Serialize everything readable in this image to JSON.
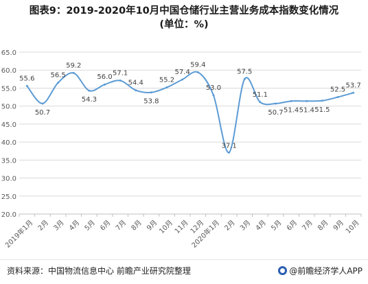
{
  "title": {
    "line1": "图表9：2019-2020年10月中国仓储行业主营业务成本指数变化情况",
    "line2": "(单位：%)"
  },
  "footer": {
    "source": "资料来源：中国物流信息中心 前瞻产业研究院整理",
    "brand": "@前瞻经济学人APP"
  },
  "colors": {
    "line": "#5b9bd5",
    "grid": "#d9d9d9",
    "axis": "#bfbfbf",
    "text": "#595959"
  },
  "chart_data": {
    "type": "line",
    "categories": [
      "2019年1月",
      "2月",
      "3月",
      "4月",
      "5月",
      "6月",
      "7月",
      "8月",
      "9月",
      "10月",
      "11月",
      "12月",
      "2020年1月",
      "2月",
      "3月",
      "4月",
      "5月",
      "6月",
      "7月",
      "8月",
      "9月",
      "10月"
    ],
    "series": [
      {
        "values": [
          55.6,
          50.7,
          56.5,
          59.2,
          54.3,
          56.0,
          57.1,
          54.4,
          53.8,
          55.2,
          57.4,
          59.4,
          53.0,
          37.1,
          57.5,
          51.1,
          50.7,
          51.4,
          51.4,
          51.5,
          52.5,
          53.7
        ]
      }
    ],
    "data_labels": [
      "55.6",
      "50.7",
      "56.5",
      "59.2",
      "54.3",
      "56.0",
      "57.1",
      "54.4",
      "53.8",
      "55.2",
      "57.4",
      "59.4",
      "53.0",
      "37.1",
      "57.5",
      "51.1",
      "50.7",
      "51.4",
      "51.4",
      "51.5",
      "52.5",
      "53.7"
    ],
    "ylim": [
      20.0,
      65.0
    ],
    "yticks": [
      "20.0",
      "25.0",
      "30.0",
      "35.0",
      "40.0",
      "45.0",
      "50.0",
      "55.0",
      "60.0",
      "65.0"
    ],
    "grid": true,
    "smooth": true
  }
}
